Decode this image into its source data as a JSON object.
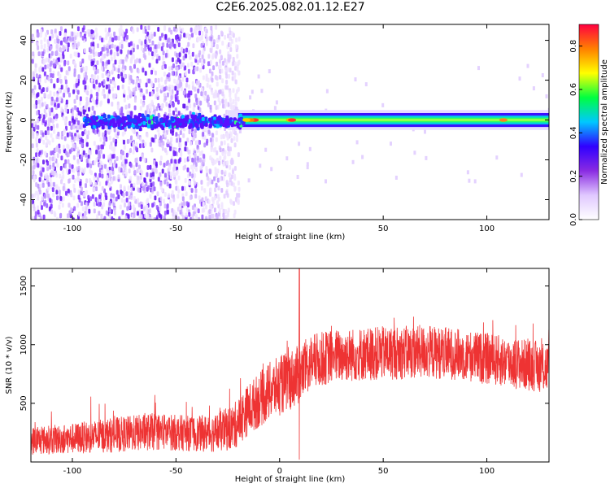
{
  "title": "C2E6.2025.082.01.12.E27",
  "chart_data": [
    {
      "type": "heatmap",
      "xlabel": "Height of straight line (km)",
      "ylabel": "Frequency (Hz)",
      "xlim": [
        -120,
        130
      ],
      "ylim": [
        -50,
        48
      ],
      "xticks": [
        -100,
        -50,
        0,
        50,
        100
      ],
      "yticks": [
        -40,
        -20,
        0,
        20,
        40
      ],
      "colorbar": {
        "label": "Normalized spectral amplitude",
        "range": [
          0,
          0.9
        ],
        "ticks": [
          0.0,
          0.2,
          0.4,
          0.6,
          0.8
        ],
        "colormap": [
          "#ffffff",
          "#e0c8ff",
          "#8a2be2",
          "#3000ff",
          "#00c8ff",
          "#00ff40",
          "#ffff00",
          "#ff8000",
          "#ff0040"
        ]
      },
      "features": {
        "noise_region_x": [
          -120,
          -20
        ],
        "band_center_hz": 0,
        "band_halfwidth_hz": 3,
        "band_x": [
          -95,
          130
        ],
        "peak_positions_km": [
          -12,
          5,
          108
        ]
      }
    },
    {
      "type": "line",
      "xlabel": "Height of straight line (km)",
      "ylabel": "SNR (10 * v/v)",
      "xlim": [
        -120,
        130
      ],
      "ylim": [
        0,
        1650
      ],
      "xticks": [
        -100,
        -50,
        0,
        50,
        100
      ],
      "yticks": [
        500,
        1000,
        1500
      ],
      "color": "#ee3333",
      "envelope": {
        "x": [
          -120,
          -100,
          -80,
          -60,
          -40,
          -30,
          -22,
          -15,
          -5,
          5,
          10,
          15,
          25,
          40,
          55,
          70,
          85,
          100,
          115,
          130
        ],
        "mean": [
          180,
          200,
          230,
          260,
          240,
          250,
          300,
          450,
          600,
          700,
          750,
          850,
          900,
          920,
          930,
          940,
          920,
          880,
          840,
          800
        ],
        "spread": [
          120,
          130,
          150,
          160,
          150,
          170,
          200,
          220,
          250,
          260,
          250,
          240,
          230,
          230,
          230,
          230,
          220,
          220,
          220,
          220
        ]
      },
      "spike": {
        "x": 9.5,
        "value": 1650,
        "dip": 20
      }
    }
  ]
}
